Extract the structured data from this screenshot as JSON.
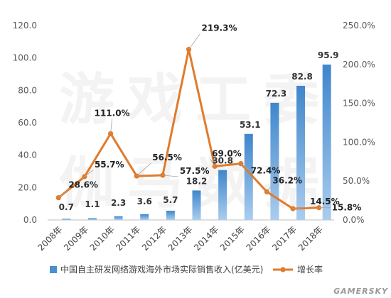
{
  "watermark": {
    "line1": "游戏工委",
    "line2": "伽马数据"
  },
  "brand": "GAMERSKY",
  "chart_data": {
    "type": "bar",
    "title": "",
    "categories": [
      "2008年",
      "2009年",
      "2010年",
      "2011年",
      "2012年",
      "2013年",
      "2014年",
      "2015年",
      "2016年",
      "2017年",
      "2018年"
    ],
    "series": [
      {
        "name": "中国自主研发网络游戏海外市场实际销售收入(亿美元)",
        "type": "bar",
        "axis": "left",
        "values": [
          0.7,
          1.1,
          2.3,
          3.6,
          5.7,
          18.2,
          30.8,
          53.1,
          72.3,
          82.8,
          95.9
        ],
        "labels": [
          "0.7",
          "1.1",
          "2.3",
          "3.6",
          "5.7",
          "18.2",
          "30.8",
          "53.1",
          "72.3",
          "82.8",
          "95.9"
        ],
        "color": "#4a8fd0"
      },
      {
        "name": "增长率",
        "type": "line",
        "axis": "right",
        "values": [
          28.6,
          55.7,
          111.0,
          56.5,
          57.5,
          219.3,
          69.0,
          72.4,
          36.2,
          14.5,
          15.8
        ],
        "labels": [
          "28.6%",
          "55.7%",
          "111.0%",
          "56.5%",
          "57.5%",
          "219.3%",
          "69.0%",
          "72.4%",
          "36.2%",
          "14.5%",
          "15.8%"
        ],
        "color": "#e07b2c"
      }
    ],
    "y_left": {
      "min": 0,
      "max": 120,
      "ticks": [
        "0.0",
        "20.0",
        "40.0",
        "60.0",
        "80.0",
        "100.0",
        "120.0"
      ]
    },
    "y_right": {
      "min": 0,
      "max": 250,
      "ticks": [
        "0.0%",
        "50.0%",
        "100.0%",
        "150.0%",
        "200.0%",
        "250.0%"
      ]
    },
    "grid": false,
    "legend": "bottom"
  }
}
